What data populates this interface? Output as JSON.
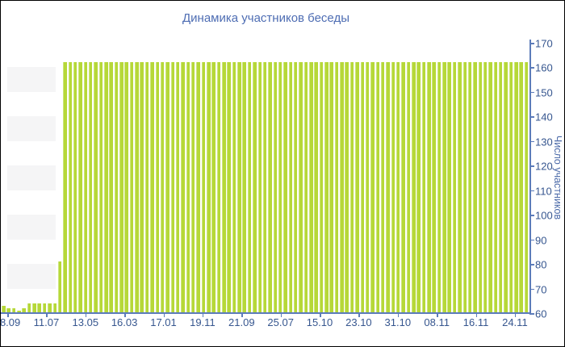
{
  "window": {
    "background": "#ffffff",
    "border_color": "#000000"
  },
  "chart_data": {
    "type": "bar",
    "title": "Динамика участников беседы",
    "xlabel": "",
    "ylabel": "Число участников",
    "ylim": [
      60,
      170
    ],
    "ytick_step": 10,
    "yticks": [
      60,
      70,
      80,
      90,
      100,
      110,
      120,
      130,
      140,
      150,
      160,
      170
    ],
    "x_tick_labels": [
      "08.09",
      "11.07",
      "13.05",
      "16.03",
      "17.01",
      "19.11",
      "21.09",
      "25.07",
      "15.10",
      "23.10",
      "31.10",
      "08.11",
      "16.11",
      "24.11"
    ],
    "grid": "alternating-bands",
    "grid_bands": [
      [
        150,
        160
      ],
      [
        130,
        140
      ],
      [
        110,
        120
      ],
      [
        90,
        100
      ],
      [
        70,
        80
      ]
    ],
    "legend_position": "none",
    "values": [
      63,
      62,
      62,
      61,
      62,
      64,
      64,
      64,
      64,
      64,
      64,
      81,
      162,
      162,
      162,
      162,
      162,
      162,
      162,
      162,
      162,
      162,
      162,
      162,
      162,
      162,
      162,
      162,
      162,
      162,
      162,
      162,
      162,
      162,
      162,
      162,
      162,
      162,
      162,
      162,
      162,
      162,
      162,
      162,
      162,
      162,
      162,
      162,
      162,
      162,
      162,
      162,
      162,
      162,
      162,
      162,
      162,
      162,
      162,
      162,
      162,
      162,
      162,
      162,
      162,
      162,
      162,
      162,
      162,
      162,
      162,
      162,
      162,
      162,
      162,
      162,
      162,
      162,
      162,
      162,
      162,
      162,
      162,
      162,
      162,
      162,
      162,
      162,
      162,
      162,
      162,
      162,
      162,
      162,
      162,
      162,
      162,
      162,
      162,
      162,
      162,
      162,
      162
    ],
    "colors": {
      "bar": "#b6d838",
      "bar_edge": "#cde57c",
      "title": "#4e6db3",
      "axis_line": "#5c7cba",
      "tick_label": "#36568f",
      "ylabel_color": "#4a69a8",
      "band": "#f5f5f6"
    }
  }
}
